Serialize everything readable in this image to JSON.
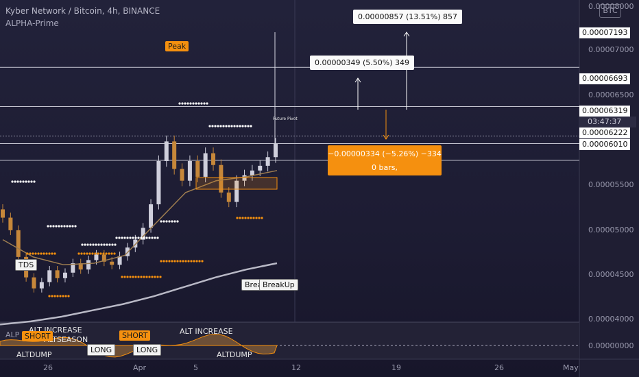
{
  "header": {
    "title": "Kyber Network / Bitcoin, 4h, BINANCE",
    "indicator": "ALPHA-Prime",
    "currency_badge": "BTC"
  },
  "annotations": {
    "measure_top": "0.00000857 (13.51%) 857",
    "measure_mid": "0.00000349 (5.50%) 349",
    "measure_neg_line1": "−0.00000334 (−5.26%) −334",
    "measure_neg_line2": "0 bars,",
    "peak": "Peak",
    "tds": "TDS",
    "breakup_1": "BreakUp",
    "breakup_2": "BreakUp",
    "future_pivot": "Future Pivot",
    "osc_alt_increase_1": "ALT INCREASE",
    "osc_alt_increase_2": "ALT INCREASE",
    "osc_altseason": "ALTSEASON",
    "osc_altdump_1": "ALTDUMP",
    "osc_altdump_2": "ALTDUMP",
    "osc_short_1": "SHORT",
    "osc_short_2": "SHORT",
    "osc_long_1": "LONG",
    "osc_long_2": "LONG",
    "osc_alp": "ALP"
  },
  "price_axis": {
    "tick_labels": [
      "0.00007000",
      "0.00006500",
      "0.00005500",
      "0.00005000",
      "0.00004500",
      "0.00004000"
    ],
    "highlighted_labels": [
      "0.00007193",
      "0.00006693",
      "0.00006319",
      "0.00006222",
      "0.00006010"
    ],
    "countdown": "03:47:37",
    "osc_label": "0.00000000",
    "top_partial": "0.00008000"
  },
  "time_axis": [
    "26",
    "Apr",
    "5",
    "12",
    "19",
    "26",
    "May"
  ],
  "colors": {
    "background": "#1d1c33",
    "up_candle": "#cfcfdc",
    "down_candle": "#c6873a",
    "accent_orange": "#f5900f",
    "ma_slow": "#b9b9c6",
    "ma_fast": "#9e7d50"
  },
  "chart_data": {
    "type": "candlestick",
    "title": "Kyber Network / Bitcoin, 4h, BINANCE",
    "xlabel": "",
    "ylabel": "",
    "ylim": [
      3.95e-05,
      8.05e-05
    ],
    "x_ticks": [
      "26",
      "Apr",
      "5",
      "12",
      "19",
      "26",
      "May"
    ],
    "last_price": 6.222e-05,
    "horizontal_levels": [
      7.193e-05,
      6.693e-05,
      6.319e-05,
      6.222e-05,
      6.01e-05
    ],
    "close_series_approx": [
      5.28e-05,
      5.12e-05,
      4.78e-05,
      4.52e-05,
      4.38e-05,
      4.46e-05,
      4.61e-05,
      4.51e-05,
      4.58e-05,
      4.7e-05,
      4.62e-05,
      4.74e-05,
      4.81e-05,
      4.72e-05,
      4.68e-05,
      4.79e-05,
      4.9e-05,
      5e-05,
      5.15e-05,
      5.45e-05,
      6e-05,
      6.25e-05,
      5.9e-05,
      5.75e-05,
      6e-05,
      5.8e-05,
      6.1e-05,
      5.95e-05,
      5.6e-05,
      5.48e-05,
      5.75e-05,
      5.82e-05,
      5.88e-05,
      5.94e-05,
      6.05e-05,
      6.22e-05
    ],
    "series": [
      {
        "name": "",
        "values": [
          3.92e-05,
          3.96e-05,
          4.02e-05,
          4.1e-05,
          4.18e-05,
          4.28e-05,
          4.4e-05,
          4.52e-05,
          4.62e-05,
          4.7e-05
        ]
      },
      {
        "name": "",
        "values": [
          5e-05,
          4.78e-05,
          4.68e-05,
          4.7e-05,
          4.8e-05,
          5.2e-05,
          5.6e-05,
          5.75e-05,
          5.8e-05,
          5.88e-05
        ]
      }
    ]
  }
}
